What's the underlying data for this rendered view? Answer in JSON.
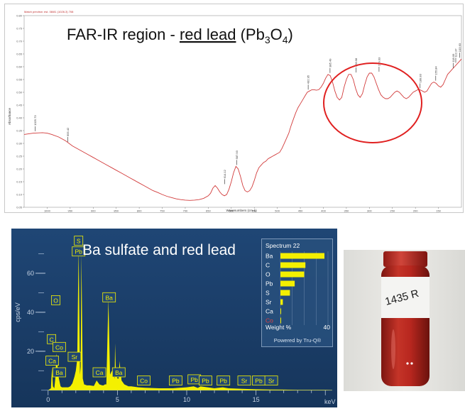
{
  "chart_data": [
    {
      "type": "line",
      "title_parts": {
        "pre": "FAR-IR region - ",
        "hl": "red lead",
        "formula": [
          "Pb",
          "3",
          "O",
          "4"
        ]
      },
      "header_text": "Match preview: est. 08/81 (1026.3) 708",
      "xlabel": "Wavenumbers (cm-1)",
      "ylabel": "Absorbance",
      "xlim": [
        1050,
        100
      ],
      "ylim": [
        0.05,
        0.8
      ],
      "x_ticks": [
        "1000",
        "950",
        "900",
        "850",
        "800",
        "750",
        "700",
        "650",
        "600",
        "550",
        "500",
        "450",
        "400",
        "350",
        "300",
        "250",
        "200",
        "150"
      ],
      "y_ticks": [
        "0.80",
        "0.75",
        "0.70",
        "0.65",
        "0.60",
        "0.55",
        "0.50",
        "0.45",
        "0.40",
        "0.35",
        "0.30",
        "0.25",
        "0.20",
        "0.15",
        "0.10",
        "0.05"
      ],
      "series": [
        {
          "color": "#d23b3b",
          "x": [
            1050,
            1030,
            1010,
            1000,
            990,
            975,
            960,
            945,
            930,
            915,
            900,
            890,
            880,
            870,
            860,
            850,
            840,
            830,
            820,
            810,
            800,
            790,
            780,
            770,
            760,
            750,
            740,
            730,
            720,
            710,
            700,
            690,
            680,
            670,
            660,
            650,
            645,
            640,
            635,
            630,
            625,
            620,
            615,
            610,
            605,
            600,
            595,
            590,
            585,
            580,
            575,
            570,
            565,
            560,
            555,
            550,
            545,
            540,
            535,
            530,
            525,
            520,
            515,
            510,
            505,
            500,
            495,
            490,
            485,
            480,
            475,
            470,
            465,
            460,
            455,
            450,
            445,
            440,
            435,
            430,
            425,
            420,
            415,
            410,
            405,
            400,
            395,
            390,
            385,
            380,
            375,
            370,
            365,
            360,
            355,
            350,
            345,
            340,
            335,
            330,
            325,
            320,
            315,
            310,
            305,
            300,
            295,
            290,
            285,
            280,
            275,
            270,
            265,
            260,
            255,
            250,
            245,
            240,
            235,
            230,
            225,
            220,
            215,
            210,
            205,
            200,
            195,
            190,
            185,
            180,
            175,
            170,
            165,
            160,
            155,
            150,
            145,
            140,
            135,
            130,
            125,
            120,
            115,
            110,
            105,
            100
          ],
          "y": [
            0.335,
            0.34,
            0.342,
            0.34,
            0.335,
            0.325,
            0.31,
            0.29,
            0.275,
            0.26,
            0.245,
            0.235,
            0.225,
            0.215,
            0.205,
            0.195,
            0.185,
            0.175,
            0.165,
            0.155,
            0.145,
            0.135,
            0.125,
            0.115,
            0.108,
            0.1,
            0.093,
            0.088,
            0.083,
            0.08,
            0.078,
            0.077,
            0.078,
            0.08,
            0.085,
            0.095,
            0.105,
            0.125,
            0.135,
            0.125,
            0.11,
            0.1,
            0.095,
            0.1,
            0.12,
            0.15,
            0.185,
            0.21,
            0.2,
            0.17,
            0.135,
            0.115,
            0.11,
            0.115,
            0.13,
            0.155,
            0.185,
            0.205,
            0.215,
            0.225,
            0.23,
            0.24,
            0.245,
            0.25,
            0.255,
            0.26,
            0.265,
            0.28,
            0.3,
            0.32,
            0.34,
            0.37,
            0.395,
            0.42,
            0.44,
            0.455,
            0.47,
            0.485,
            0.5,
            0.505,
            0.51,
            0.51,
            0.508,
            0.51,
            0.52,
            0.535,
            0.555,
            0.57,
            0.565,
            0.54,
            0.505,
            0.48,
            0.47,
            0.48,
            0.52,
            0.55,
            0.57,
            0.57,
            0.55,
            0.515,
            0.49,
            0.48,
            0.495,
            0.53,
            0.56,
            0.575,
            0.575,
            0.56,
            0.535,
            0.51,
            0.49,
            0.48,
            0.475,
            0.475,
            0.48,
            0.49,
            0.5,
            0.505,
            0.5,
            0.49,
            0.48,
            0.475,
            0.48,
            0.49,
            0.5,
            0.505,
            0.51,
            0.51,
            0.505,
            0.5,
            0.505,
            0.52,
            0.535,
            0.54,
            0.535,
            0.525,
            0.52,
            0.53,
            0.55,
            0.57,
            0.58,
            0.59,
            0.6,
            0.61,
            0.62,
            0.63
          ]
        }
      ],
      "peak_labels": [
        {
          "x": 1025.73,
          "y": 0.342,
          "text": "1025.73"
        },
        {
          "x": 955.42,
          "y": 0.3,
          "text": "955.42"
        },
        {
          "x": 614.12,
          "y": 0.135,
          "text": "614.12"
        },
        {
          "x": 587.93,
          "y": 0.21,
          "text": "587.93"
        },
        {
          "x": 432.95,
          "y": 0.505,
          "text": "432.95"
        },
        {
          "x": 385.49,
          "y": 0.57,
          "text": "385.49"
        },
        {
          "x": 328.98,
          "y": 0.572,
          "text": "328.98"
        },
        {
          "x": 279.03,
          "y": 0.575,
          "text": "279.03"
        },
        {
          "x": 189.83,
          "y": 0.51,
          "text": "189.83"
        },
        {
          "x": 155.84,
          "y": 0.54,
          "text": "155.84"
        },
        {
          "x": 112.37,
          "y": 0.61,
          "text": "112.37"
        },
        {
          "x": 118.09,
          "y": 0.59,
          "text": "118.09"
        },
        {
          "x": 103.63,
          "y": 0.63,
          "text": "103.63"
        }
      ],
      "highlight_ellipse_color": "#e02020"
    },
    {
      "type": "line",
      "title": "Ba sulfate and red lead",
      "ylabel": "cps/eV",
      "xlabel": "keV",
      "xlim": [
        -0.5,
        20.5
      ],
      "ylim": [
        -3,
        80
      ],
      "x_ticks": [
        "0",
        "5",
        "10",
        "15"
      ],
      "y_ticks": [
        "20",
        "40",
        "60"
      ],
      "series": [
        {
          "color": "#f4f000",
          "x": [
            -0.5,
            0,
            0.1,
            0.2,
            0.28,
            0.35,
            0.45,
            0.52,
            0.6,
            0.75,
            0.9,
            1.0,
            1.1,
            1.2,
            1.3,
            1.45,
            1.6,
            1.75,
            1.9,
            2.0,
            2.1,
            2.2,
            2.3,
            2.35,
            2.4,
            2.5,
            2.6,
            2.8,
            3.0,
            3.3,
            3.5,
            3.7,
            3.9,
            4.0,
            4.1,
            4.2,
            4.35,
            4.47,
            4.6,
            4.7,
            4.8,
            4.83,
            4.9,
            5.0,
            5.1,
            5.15,
            5.3,
            5.5,
            5.8,
            6.0,
            6.5,
            7.0,
            8.0,
            9.0,
            10.0,
            10.5,
            10.8,
            11.0,
            11.5,
            12.0,
            12.6,
            13.0,
            14.0,
            15.0,
            16.0,
            17.0,
            18.0,
            19.0,
            20.0,
            20.5
          ],
          "y": [
            0,
            0,
            0.5,
            1,
            12,
            2,
            1,
            6,
            19,
            7,
            2,
            1.5,
            1.5,
            1.5,
            1.5,
            1.5,
            2,
            3.5,
            7,
            10,
            16,
            73,
            8,
            12,
            70,
            6,
            3,
            2.5,
            2.5,
            2.2,
            5,
            3,
            2.5,
            2.5,
            3,
            3,
            47,
            8,
            10,
            8,
            6,
            24,
            8,
            6,
            6,
            15,
            5,
            3,
            2,
            2,
            1.5,
            1.3,
            1,
            1,
            1.5,
            2,
            1.2,
            2,
            1.5,
            1,
            1.5,
            1,
            0.7,
            0.5,
            0.4,
            0.3,
            0.2,
            0.2,
            0.2,
            0.1
          ]
        }
      ],
      "element_labels": [
        {
          "x": 2.2,
          "y": 76.5,
          "text": "S"
        },
        {
          "x": 2.2,
          "y": 71.0,
          "text": "Pb"
        },
        {
          "x": 4.4,
          "y": 47.5,
          "text": "Ba"
        },
        {
          "x": 0.55,
          "y": 46.0,
          "text": "O"
        },
        {
          "x": 0.25,
          "y": 26.0,
          "text": "C"
        },
        {
          "x": 0.8,
          "y": 22.0,
          "text": "Co"
        },
        {
          "x": 1.9,
          "y": 17.0,
          "text": "Sr"
        },
        {
          "x": 0.3,
          "y": 15.0,
          "text": "Ca"
        },
        {
          "x": 0.8,
          "y": 9.0,
          "text": "Ba"
        },
        {
          "x": 3.7,
          "y": 9.0,
          "text": "Ca"
        },
        {
          "x": 5.1,
          "y": 9.0,
          "text": "Ba"
        },
        {
          "x": 6.9,
          "y": 4.8,
          "text": "Co"
        },
        {
          "x": 9.2,
          "y": 4.8,
          "text": "Pb"
        },
        {
          "x": 10.55,
          "y": 5.4,
          "text": "Pb"
        },
        {
          "x": 11.35,
          "y": 4.8,
          "text": "Pb"
        },
        {
          "x": 12.65,
          "y": 4.8,
          "text": "Pb"
        },
        {
          "x": 14.15,
          "y": 4.8,
          "text": "Sr"
        },
        {
          "x": 15.2,
          "y": 4.8,
          "text": "Pb"
        },
        {
          "x": 16.1,
          "y": 4.8,
          "text": "Sr"
        }
      ]
    }
  ],
  "legend": {
    "title": "Spectrum 22",
    "items": [
      {
        "label": "Ba",
        "value": 37
      },
      {
        "label": "C",
        "value": 21
      },
      {
        "label": "O",
        "value": 20
      },
      {
        "label": "Pb",
        "value": 12
      },
      {
        "label": "S",
        "value": 8
      },
      {
        "label": "Sr",
        "value": 2
      },
      {
        "label": "Ca",
        "value": 0.5
      },
      {
        "label": "Co",
        "value": 0.2
      }
    ],
    "xlabel": "Weight %",
    "xmax_label": "40",
    "footer": "Powered by Tru-Q®",
    "bar_color": "#f4f000"
  },
  "photo": {
    "label": "1435 R",
    "liquid_color": "#b8271f"
  }
}
